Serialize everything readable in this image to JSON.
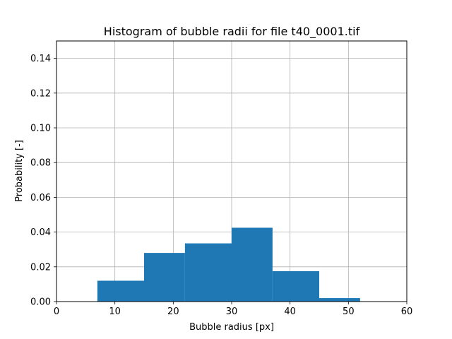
{
  "chart_data": {
    "type": "bar",
    "title": "Histogram of bubble radii for file t40_0001.tif",
    "xlabel": "Bubble radius [px]",
    "ylabel": "Probability [-]",
    "xlim": [
      0,
      60
    ],
    "ylim": [
      0,
      0.15
    ],
    "grid": true,
    "bar_color": "#1f77b4",
    "grid_color": "#b0b0b0",
    "xticks": [
      "0",
      "10",
      "20",
      "30",
      "40",
      "50",
      "60"
    ],
    "yticks": [
      "0.00",
      "0.02",
      "0.04",
      "0.06",
      "0.08",
      "0.10",
      "0.12",
      "0.14"
    ],
    "bins": [
      {
        "x0": 7,
        "x1": 15,
        "value": 0.012
      },
      {
        "x0": 15,
        "x1": 22,
        "value": 0.028
      },
      {
        "x0": 22,
        "x1": 30,
        "value": 0.0335
      },
      {
        "x0": 30,
        "x1": 37,
        "value": 0.0425
      },
      {
        "x0": 37,
        "x1": 45,
        "value": 0.0175
      },
      {
        "x0": 45,
        "x1": 52,
        "value": 0.002
      }
    ]
  }
}
